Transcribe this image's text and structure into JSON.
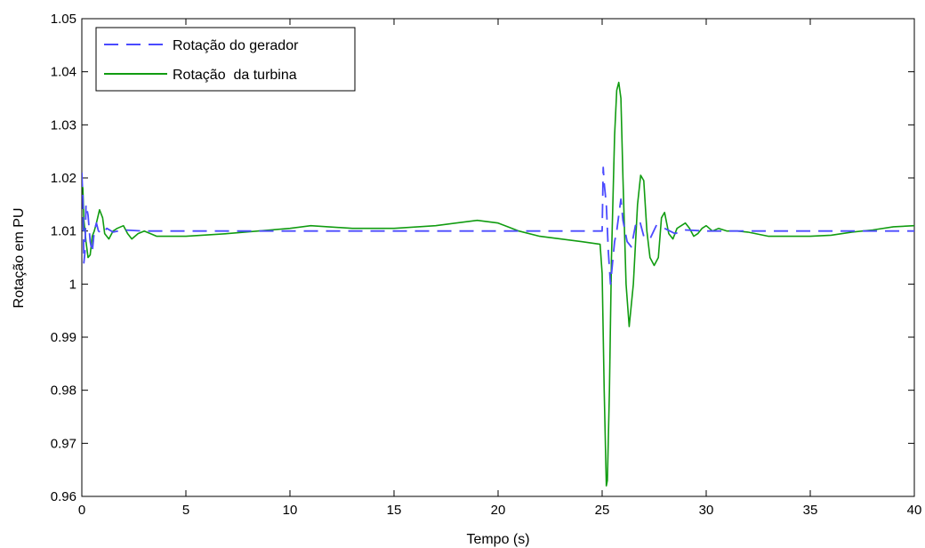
{
  "chart_data": {
    "type": "line",
    "xlabel": "Tempo (s)",
    "ylabel": "Rotação em PU",
    "xlim": [
      0,
      40
    ],
    "ylim": [
      0.96,
      1.05
    ],
    "xticks": [
      0,
      5,
      10,
      15,
      20,
      25,
      30,
      35,
      40
    ],
    "yticks": [
      0.96,
      0.97,
      0.98,
      0.99,
      1,
      1.01,
      1.02,
      1.03,
      1.04,
      1.05
    ],
    "xtick_labels": [
      "0",
      "5",
      "10",
      "15",
      "20",
      "25",
      "30",
      "35",
      "40"
    ],
    "ytick_labels": [
      "0.96",
      "0.97",
      "0.98",
      "0.99",
      "1",
      "1.01",
      "1.02",
      "1.03",
      "1.04",
      "1.05"
    ],
    "grid": false,
    "legend_position": "top-left",
    "series": [
      {
        "name": "Rotação do gerador",
        "color": "#4a4aff",
        "style": "dashed",
        "x": [
          0,
          0.05,
          0.1,
          0.15,
          0.2,
          0.3,
          0.4,
          0.5,
          0.6,
          0.7,
          0.8,
          1.0,
          1.2,
          1.5,
          2.0,
          3.0,
          5,
          10,
          15,
          20,
          24.0,
          24.9,
          25.0,
          25.05,
          25.1,
          25.2,
          25.3,
          25.4,
          25.5,
          25.6,
          25.7,
          25.8,
          25.9,
          26.0,
          26.2,
          26.4,
          26.6,
          26.8,
          27.0,
          27.3,
          27.6,
          28.0,
          28.5,
          29.0,
          30,
          35,
          40
        ],
        "y": [
          1.021,
          1.016,
          1.004,
          1.006,
          1.015,
          1.013,
          1.008,
          1.006,
          1.01,
          1.0115,
          1.01,
          1.0095,
          1.0105,
          1.0098,
          1.0102,
          1.01,
          1.01,
          1.01,
          1.01,
          1.01,
          1.01,
          1.01,
          1.01,
          1.022,
          1.019,
          1.015,
          1.006,
          1.0,
          1.004,
          1.008,
          1.01,
          1.013,
          1.016,
          1.012,
          1.008,
          1.007,
          1.011,
          1.012,
          1.009,
          1.0085,
          1.011,
          1.0105,
          1.0095,
          1.0102,
          1.01,
          1.01,
          1.01
        ]
      },
      {
        "name": "Rotação  da turbina",
        "color": "#119c11",
        "style": "solid",
        "x": [
          0,
          0.05,
          0.1,
          0.2,
          0.3,
          0.4,
          0.5,
          0.6,
          0.7,
          0.85,
          1.0,
          1.1,
          1.3,
          1.5,
          1.7,
          2.0,
          2.2,
          2.4,
          2.7,
          3.0,
          3.3,
          3.6,
          4.0,
          5,
          7,
          10,
          11,
          13,
          15,
          17,
          19,
          20,
          21,
          22,
          23,
          24,
          24.9,
          25.0,
          25.1,
          25.2,
          25.25,
          25.35,
          25.45,
          25.6,
          25.7,
          25.8,
          25.9,
          26.0,
          26.15,
          26.3,
          26.5,
          26.7,
          26.85,
          27.0,
          27.15,
          27.3,
          27.5,
          27.7,
          27.85,
          28.0,
          28.2,
          28.4,
          28.6,
          28.8,
          29.0,
          29.2,
          29.4,
          29.6,
          29.8,
          30.0,
          30.3,
          30.6,
          31.0,
          31.5,
          32,
          33,
          35,
          36,
          37,
          38,
          39,
          40
        ],
        "y": [
          1.019,
          1.018,
          1.012,
          1.008,
          1.005,
          1.0055,
          1.009,
          1.01,
          1.0115,
          1.014,
          1.0125,
          1.0095,
          1.0085,
          1.01,
          1.0105,
          1.011,
          1.0095,
          1.0085,
          1.0095,
          1.01,
          1.0095,
          1.009,
          1.009,
          1.009,
          1.0095,
          1.0105,
          1.011,
          1.0105,
          1.0105,
          1.011,
          1.012,
          1.0115,
          1.01,
          1.009,
          1.0085,
          1.008,
          1.0075,
          1.002,
          0.98,
          0.962,
          0.963,
          0.98,
          1.005,
          1.028,
          1.0365,
          1.038,
          1.035,
          1.02,
          1.0,
          0.992,
          1.0,
          1.015,
          1.0205,
          1.0195,
          1.01,
          1.005,
          1.0035,
          1.005,
          1.0125,
          1.0135,
          1.0095,
          1.0085,
          1.0105,
          1.011,
          1.0115,
          1.0105,
          1.009,
          1.0095,
          1.0105,
          1.011,
          1.01,
          1.0105,
          1.01,
          1.01,
          1.0098,
          1.009,
          1.009,
          1.0092,
          1.0098,
          1.0102,
          1.0108,
          1.011
        ]
      }
    ]
  }
}
